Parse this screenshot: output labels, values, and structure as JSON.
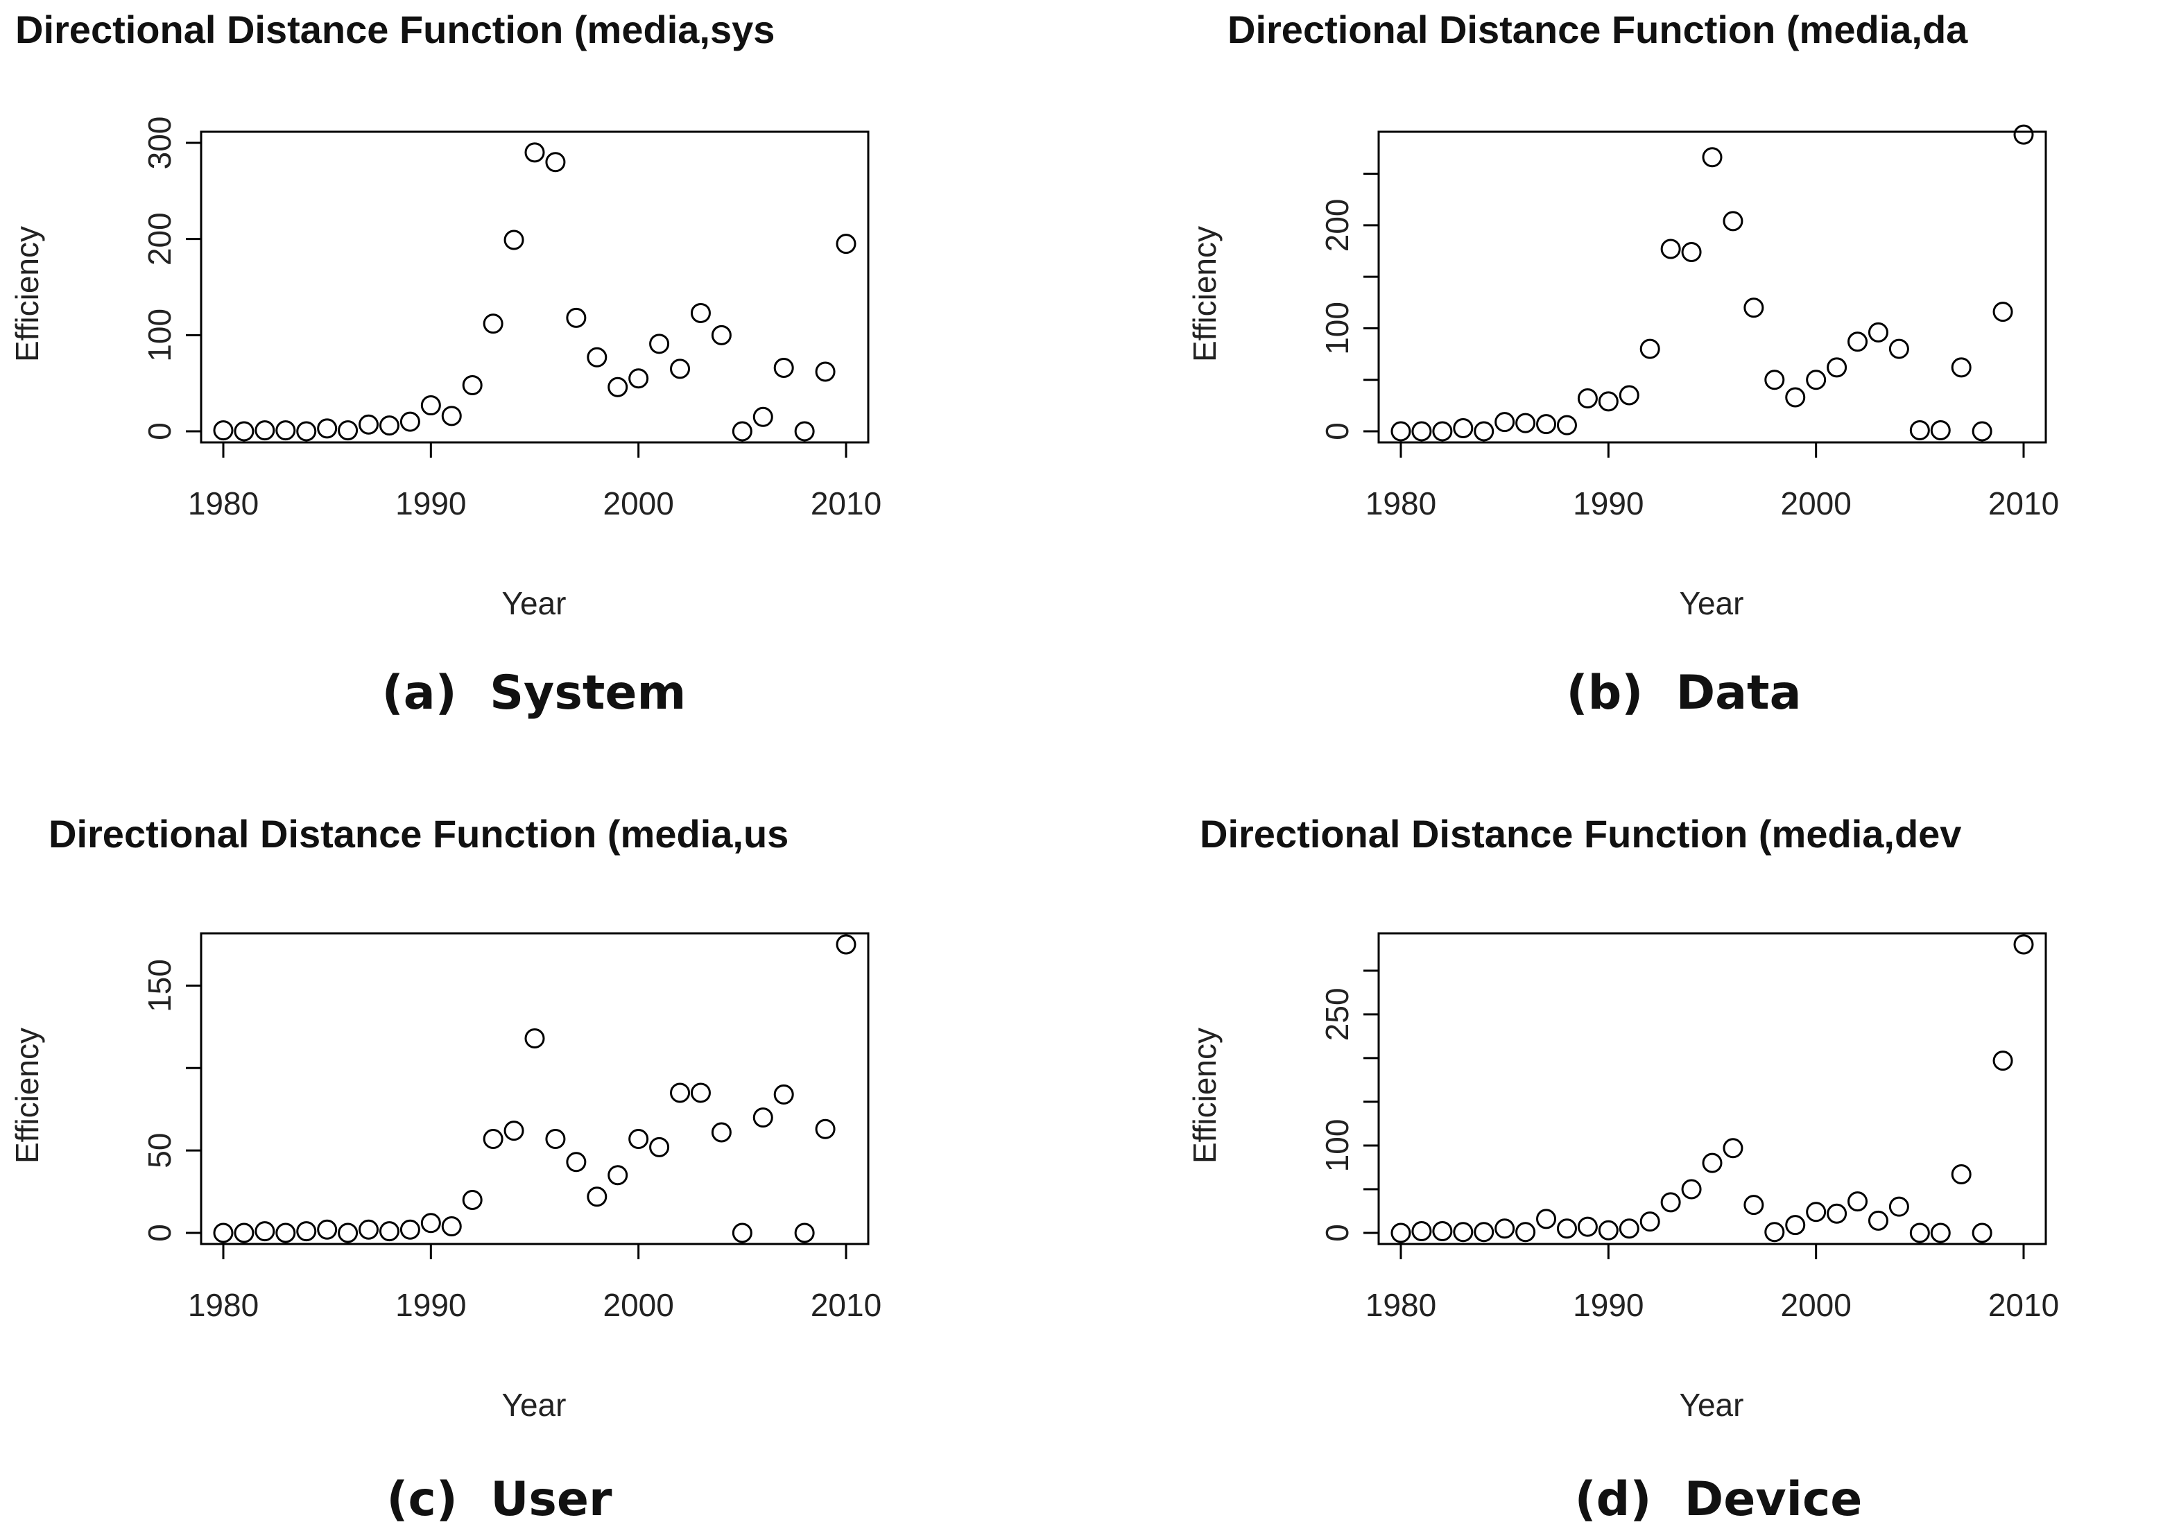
{
  "chart_data": [
    {
      "type": "scatter",
      "title": "Directional Distance Function (media,sys",
      "xlabel": "Year",
      "ylabel": "Efficiency",
      "caption": "(a)  System",
      "xlim": [
        1980,
        2010
      ],
      "ylim": [
        0,
        300
      ],
      "xticks": [
        1980,
        1990,
        2000,
        2010
      ],
      "xtick_labels": [
        "1980",
        "1990",
        "2000",
        "2010"
      ],
      "yticks": [
        0,
        100,
        200,
        300
      ],
      "ytick_labels": [
        "0",
        "100",
        "200",
        "300"
      ],
      "x": [
        1980,
        1981,
        1982,
        1983,
        1984,
        1985,
        1986,
        1987,
        1988,
        1989,
        1990,
        1991,
        1992,
        1993,
        1994,
        1995,
        1996,
        1997,
        1998,
        1999,
        2000,
        2001,
        2002,
        2003,
        2004,
        2005,
        2006,
        2007,
        2008,
        2009,
        2010
      ],
      "y": [
        1,
        0,
        1,
        1,
        0,
        3,
        1,
        7,
        6,
        10,
        27,
        16,
        48,
        112,
        199,
        290,
        280,
        118,
        77,
        46,
        55,
        91,
        65,
        123,
        100,
        0,
        15,
        66,
        0,
        62,
        195
      ]
    },
    {
      "type": "scatter",
      "title": "Directional Distance Function (media,da",
      "xlabel": "Year",
      "ylabel": "Efficiency",
      "caption": "(b)  Data",
      "xlim": [
        1980,
        2010
      ],
      "ylim": [
        0,
        280
      ],
      "xticks": [
        1980,
        1990,
        2000,
        2010
      ],
      "xtick_labels": [
        "1980",
        "1990",
        "2000",
        "2010"
      ],
      "yticks": [
        0,
        100,
        200
      ],
      "ytick_labels": [
        "0",
        "100",
        "200"
      ],
      "x": [
        1980,
        1981,
        1982,
        1983,
        1984,
        1985,
        1986,
        1987,
        1988,
        1989,
        1990,
        1991,
        1992,
        1993,
        1994,
        1995,
        1996,
        1997,
        1998,
        1999,
        2000,
        2001,
        2002,
        2003,
        2004,
        2005,
        2006,
        2007,
        2008,
        2009,
        2010
      ],
      "y": [
        0,
        0,
        0,
        3,
        0,
        9,
        8,
        7,
        6,
        32,
        29,
        35,
        80,
        177,
        174,
        266,
        204,
        120,
        50,
        33,
        50,
        62,
        87,
        96,
        80,
        1,
        1,
        62,
        0,
        116,
        288
      ]
    },
    {
      "type": "scatter",
      "title": "Directional Distance Function (media,us",
      "xlabel": "Year",
      "ylabel": "Efficiency",
      "caption": "(c)  User",
      "xlim": [
        1980,
        2010
      ],
      "ylim": [
        0,
        175
      ],
      "xticks": [
        1980,
        1990,
        2000,
        2010
      ],
      "xtick_labels": [
        "1980",
        "1990",
        "2000",
        "2010"
      ],
      "yticks": [
        0,
        50,
        150
      ],
      "ytick_labels": [
        "0",
        "50",
        "150"
      ],
      "x": [
        1980,
        1981,
        1982,
        1983,
        1984,
        1985,
        1986,
        1987,
        1988,
        1989,
        1990,
        1991,
        1992,
        1993,
        1994,
        1995,
        1996,
        1997,
        1998,
        1999,
        2000,
        2001,
        2002,
        2003,
        2004,
        2005,
        2006,
        2007,
        2008,
        2009,
        2010
      ],
      "y": [
        0,
        0,
        1,
        0,
        1,
        2,
        0,
        2,
        1,
        2,
        6,
        4,
        20,
        57,
        62,
        118,
        57,
        43,
        22,
        35,
        57,
        52,
        85,
        85,
        61,
        0,
        70,
        84,
        0,
        63,
        175
      ]
    },
    {
      "type": "scatter",
      "title": "Directional Distance Function (media,dev",
      "xlabel": "Year",
      "ylabel": "Efficiency",
      "caption": "(d)  Device",
      "xlim": [
        1980,
        2010
      ],
      "ylim": [
        0,
        330
      ],
      "xticks": [
        1980,
        1990,
        2000,
        2010
      ],
      "xtick_labels": [
        "1980",
        "1990",
        "2000",
        "2010"
      ],
      "yticks": [
        0,
        100,
        250
      ],
      "ytick_labels": [
        "0",
        "100",
        "250"
      ],
      "x": [
        1980,
        1981,
        1982,
        1983,
        1984,
        1985,
        1986,
        1987,
        1988,
        1989,
        1990,
        1991,
        1992,
        1993,
        1994,
        1995,
        1996,
        1997,
        1998,
        1999,
        2000,
        2001,
        2002,
        2003,
        2004,
        2005,
        2006,
        2007,
        2008,
        2009,
        2010
      ],
      "y": [
        0,
        2,
        2,
        1,
        1,
        5,
        1,
        16,
        5,
        7,
        3,
        5,
        13,
        35,
        50,
        80,
        97,
        32,
        1,
        9,
        24,
        22,
        36,
        14,
        30,
        0,
        0,
        67,
        0,
        197,
        330
      ]
    }
  ]
}
